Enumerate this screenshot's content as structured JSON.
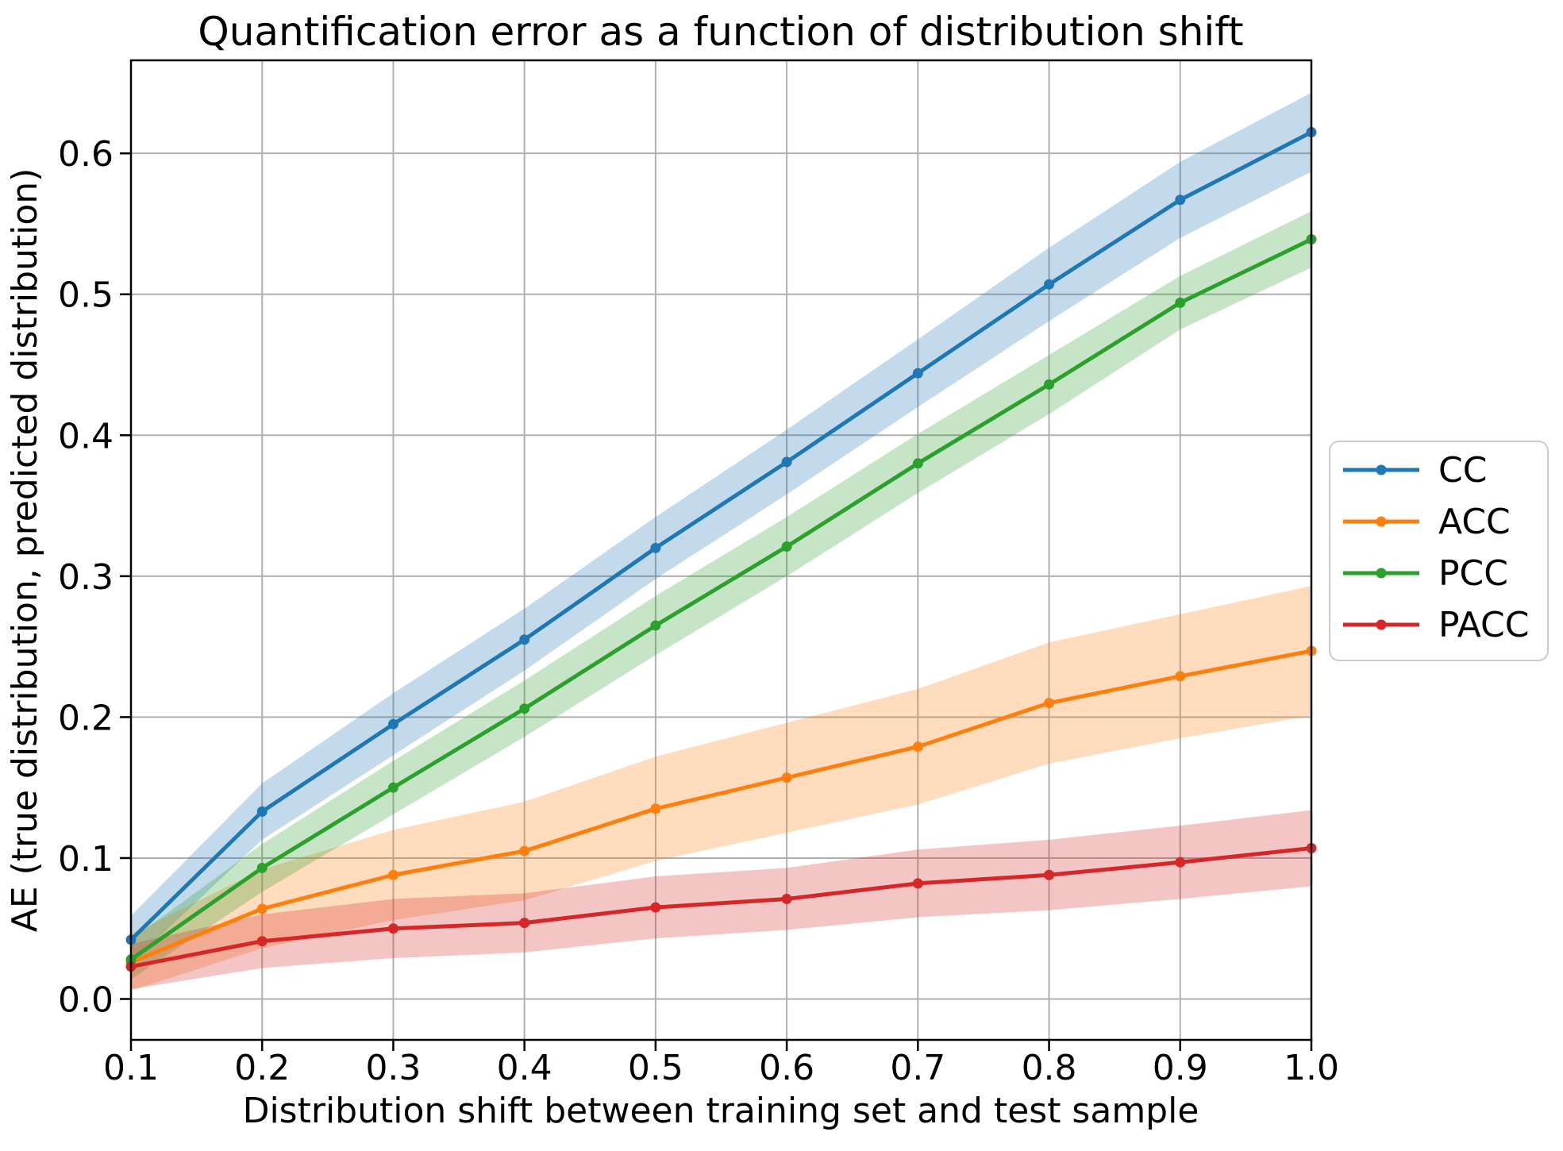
{
  "figure": {
    "title": "Quantification error as a function of distribution shift",
    "xlabel": "Distribution shift between training set and test sample",
    "ylabel": "AE (true distribution, predicted distribution)",
    "background_color": "#ffffff",
    "grid_color": "#b0b0b0",
    "spine_color": "#000000",
    "text_color": "#000000",
    "legend": {
      "position": "right-outside",
      "background_color": "#ffffff",
      "border_color": "#cccccc",
      "items": [
        "CC",
        "ACC",
        "PCC",
        "PACC"
      ]
    }
  },
  "chart_data": {
    "type": "line",
    "title": "Quantification error as a function of distribution shift",
    "xlabel": "Distribution shift between training set and test sample",
    "ylabel": "AE (true distribution, predicted distribution)",
    "x": [
      0.1,
      0.2,
      0.3,
      0.4,
      0.5,
      0.6,
      0.7,
      0.8,
      0.9,
      1.0
    ],
    "x_tick_labels": [
      "0.1",
      "0.2",
      "0.3",
      "0.4",
      "0.5",
      "0.6",
      "0.7",
      "0.8",
      "0.9",
      "1.0"
    ],
    "y_ticks": [
      0.0,
      0.1,
      0.2,
      0.3,
      0.4,
      0.5,
      0.6
    ],
    "y_tick_labels": [
      "0.0",
      "0.1",
      "0.2",
      "0.3",
      "0.4",
      "0.5",
      "0.6"
    ],
    "xlim": [
      0.1,
      1.0
    ],
    "ylim": [
      -0.029,
      0.666
    ],
    "grid": true,
    "legend_position": "right-outside",
    "band_opacity": 0.27,
    "series": [
      {
        "name": "CC",
        "color": "#1f77b4",
        "values": [
          0.042,
          0.133,
          0.195,
          0.255,
          0.32,
          0.381,
          0.444,
          0.507,
          0.567,
          0.615
        ],
        "band_lo": [
          0.025,
          0.113,
          0.173,
          0.233,
          0.298,
          0.358,
          0.42,
          0.481,
          0.54,
          0.587
        ],
        "band_hi": [
          0.059,
          0.153,
          0.217,
          0.277,
          0.342,
          0.404,
          0.468,
          0.533,
          0.594,
          0.643
        ]
      },
      {
        "name": "ACC",
        "color": "#ff7f0e",
        "values": [
          0.026,
          0.064,
          0.088,
          0.105,
          0.135,
          0.157,
          0.179,
          0.21,
          0.229,
          0.247
        ],
        "band_lo": [
          0.006,
          0.036,
          0.056,
          0.07,
          0.098,
          0.118,
          0.138,
          0.167,
          0.185,
          0.201
        ],
        "band_hi": [
          0.046,
          0.092,
          0.12,
          0.14,
          0.172,
          0.196,
          0.22,
          0.253,
          0.273,
          0.293
        ]
      },
      {
        "name": "PCC",
        "color": "#2ca02c",
        "values": [
          0.028,
          0.093,
          0.15,
          0.206,
          0.265,
          0.321,
          0.38,
          0.436,
          0.494,
          0.539
        ],
        "band_lo": [
          0.014,
          0.076,
          0.131,
          0.186,
          0.244,
          0.3,
          0.359,
          0.415,
          0.475,
          0.519
        ],
        "band_hi": [
          0.042,
          0.11,
          0.169,
          0.226,
          0.286,
          0.342,
          0.401,
          0.457,
          0.513,
          0.559
        ]
      },
      {
        "name": "PACC",
        "color": "#d62728",
        "values": [
          0.023,
          0.041,
          0.05,
          0.054,
          0.065,
          0.071,
          0.082,
          0.088,
          0.097,
          0.107
        ],
        "band_lo": [
          0.007,
          0.022,
          0.029,
          0.033,
          0.043,
          0.049,
          0.058,
          0.063,
          0.071,
          0.08
        ],
        "band_hi": [
          0.039,
          0.06,
          0.071,
          0.075,
          0.087,
          0.093,
          0.106,
          0.113,
          0.123,
          0.134
        ]
      }
    ]
  }
}
